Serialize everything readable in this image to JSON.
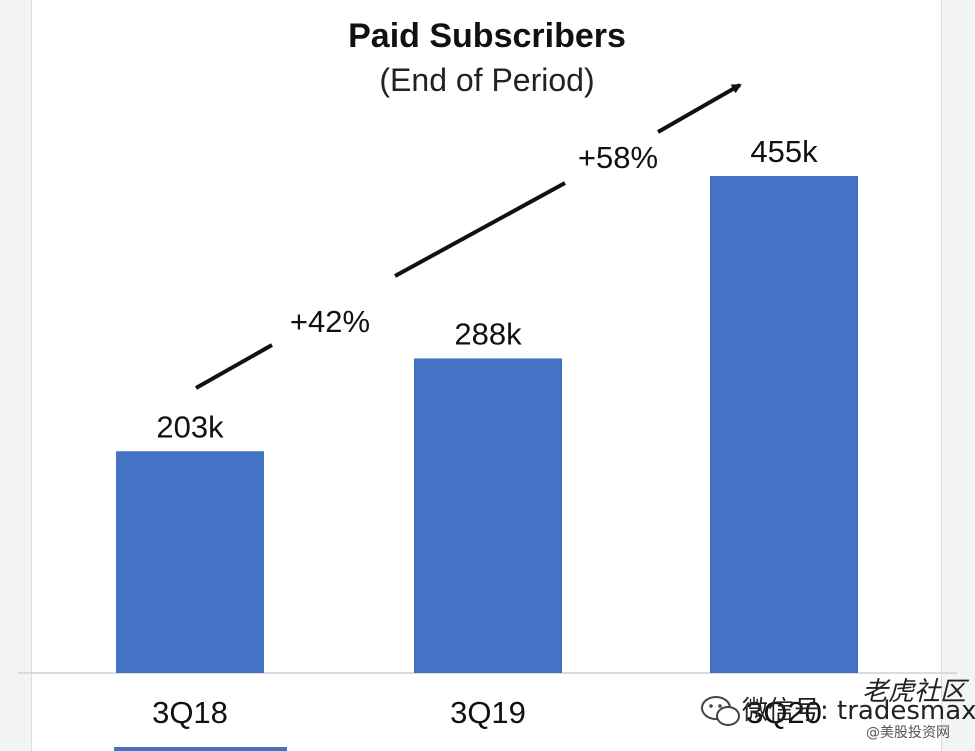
{
  "chart_data": {
    "type": "bar",
    "title": "Paid Subscribers",
    "subtitle": "(End of Period)",
    "categories": [
      "3Q18",
      "3Q19",
      "3Q20"
    ],
    "values": [
      203,
      288,
      455
    ],
    "value_labels": [
      "203k",
      "288k",
      "455k"
    ],
    "unit": "k",
    "ylim": [
      0,
      500
    ],
    "grid": false,
    "legend": "none",
    "bar_color": "#4472c4",
    "annotations": [
      {
        "text": "+42%",
        "from": "3Q18",
        "to": "3Q19"
      },
      {
        "text": "+58%",
        "from": "3Q19",
        "to": "3Q20"
      }
    ]
  },
  "watermark": {
    "text": "微信号: tradesmax",
    "logo_text": "老虎社区",
    "sub_text": "@美股投资网",
    "icon": "wechat-icon"
  }
}
